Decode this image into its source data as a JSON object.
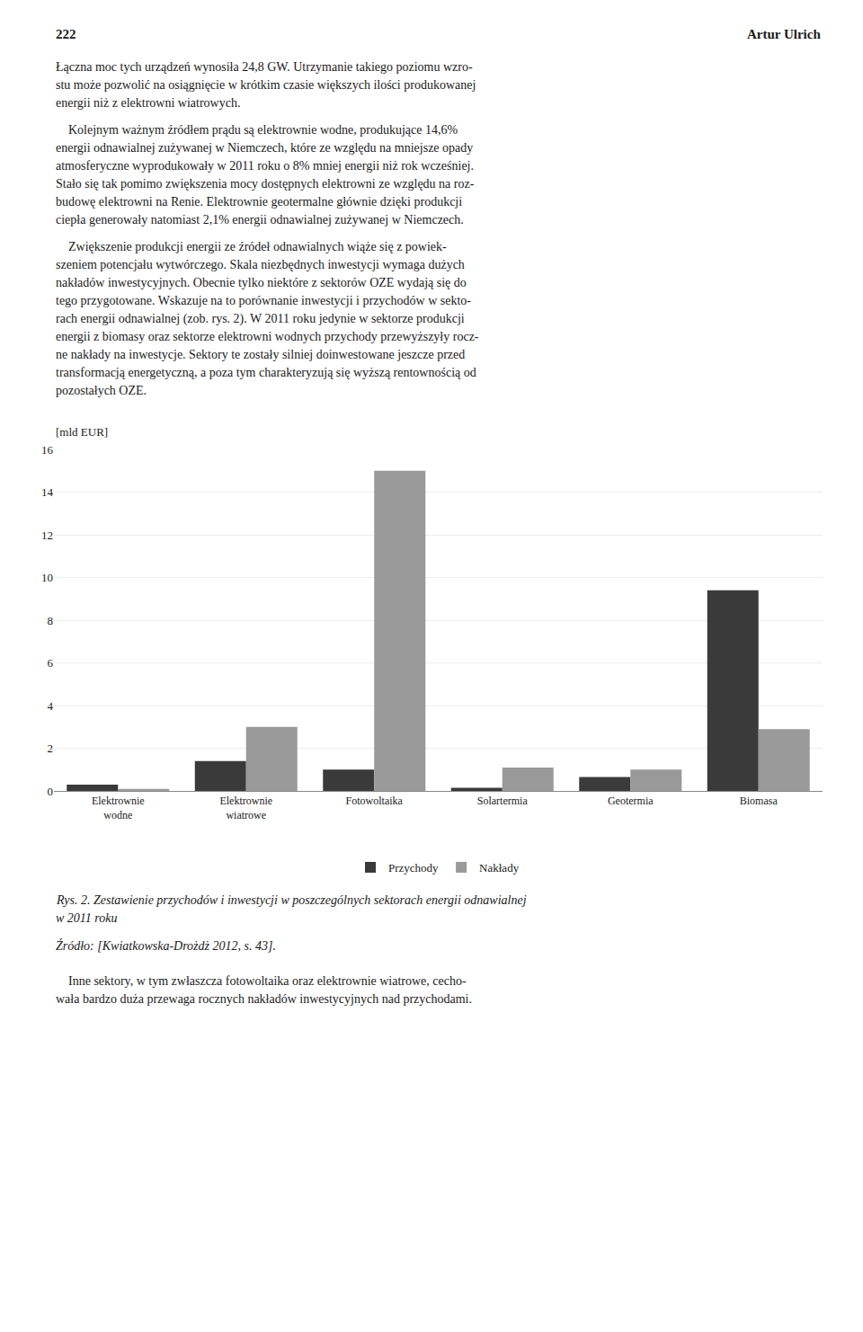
{
  "chart_data": {
    "type": "bar",
    "title": "Rys. 2. Zestawienie przychodów i inwestycji w poszczególnych sektorach energii odnawialnej\nw 2011 roku",
    "subtitle": "Źródło: [Kwiatkowska-Drożdż 2012, s. 43].",
    "ylabel": "[mld EUR]",
    "categories": [
      "Elektrownie\nwodne",
      "Elektrownie\nwiatrowe",
      "Fotowoltaika",
      "Solartermia",
      "Geotermia",
      "Biomasa"
    ],
    "series": [
      {
        "name": "Przychody",
        "color": "#3a3a3a",
        "values": [
          0.3,
          1.4,
          1.0,
          0.15,
          0.65,
          9.4
        ]
      },
      {
        "name": "Nakłady",
        "color": "#999999",
        "values": [
          0.1,
          3.0,
          15.0,
          1.1,
          1.0,
          2.9
        ]
      }
    ],
    "ylim": [
      0,
      16
    ],
    "yticks": [
      0,
      2,
      4,
      6,
      8,
      10,
      12,
      14,
      16
    ],
    "grid": true,
    "legend": "bottom",
    "annotations": [
      [
        "222",
        "Artur Ulrich"
      ],
      [
        "Łączna moc tych urządzeń wynosiła 24,8 GW. Utrzymanie takiego poziomu wzro-",
        "stu może pozwolić na osiągnięcie w krótkim czasie większych ilości produkowanej",
        "energii niż z elektrowni wiatrowych."
      ],
      [
        "    Kolejnym ważnym źródłem prądu są elektrownie wodne, produkujące 14,6%",
        "energii odnawialnej zużywanej w Niemczech, które ze względu na mniejsze opady",
        "atmosferyczne wyprodukowały w 2011 roku o 8% mniej energii niż rok wcześniej.",
        "Stało się tak pomimo zwiększenia mocy dostępnych elektrowni ze względu na roz-",
        "budowę elektrowni na Renie. Elektrownie geotermalne głównie dzięki produkcji",
        "ciepła generowały natomiast 2,1% energii odnawialnej zużywanej w Niemczech."
      ],
      [
        "    Zwiększenie produkcji energii ze źródeł odnawialnych wiąże się z powiek-",
        "szeniem potencjału wytwórczego. Skala niezbędnych inwestycji wymaga dużych",
        "nakładów inwestycyjnych. Obecnie tylko niektóre z sektorów OZE wydają się do",
        "tego przygotowane. Wskazuje na to porównanie inwestycji i przychodów w sekto-",
        "rach energii odnawialnej (zob. rys. 2). W 2011 roku jedynie w sektorze produkcji",
        "energii z biomasy oraz sektorze elektrowni wodnych przychody przewyższyły rocz-",
        "ne nakłady na inwestycje. Sektory te zostały silniej doinwestowane jeszcze przed",
        "transformacją energetyczną, a poza tym charakteryzują się wyższą rentownością od",
        "pozostałych OZE."
      ],
      [
        "    Inne sektory, w tym zwłaszcza fotowoltaika oraz elektrownie wiatrowe, cecho-",
        "wała bardzo duża przewaga rocznych nakładów inwestycyjnych nad przychodami."
      ]
    ]
  }
}
